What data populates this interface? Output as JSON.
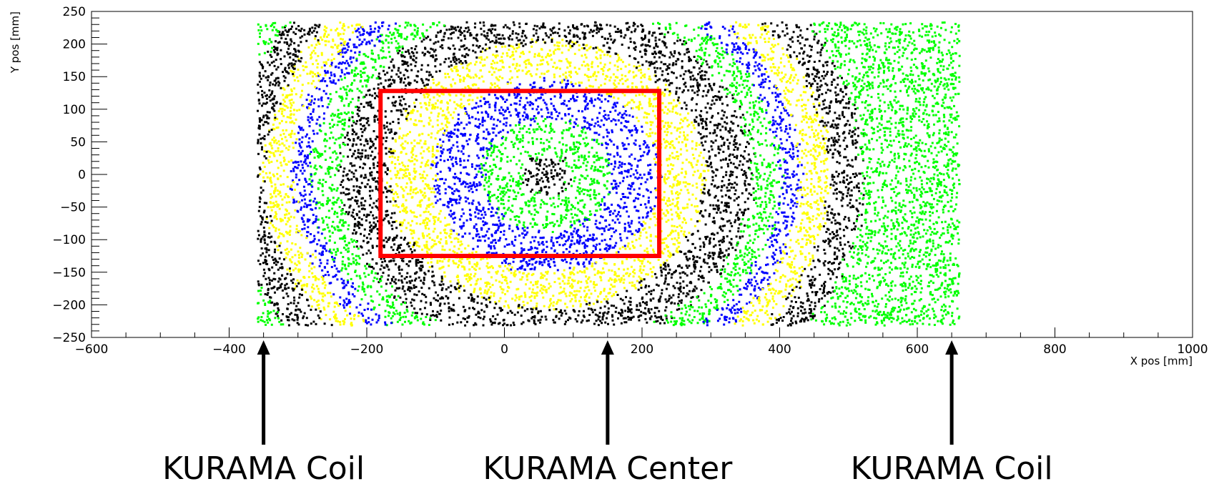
{
  "chart_data": {
    "type": "scatter",
    "title": "",
    "xlabel": "X pos [mm]",
    "ylabel": "Y pos [mm]",
    "xlim": [
      -600,
      1000
    ],
    "ylim": [
      -250,
      250
    ],
    "x_ticks": [
      -600,
      -400,
      -200,
      0,
      200,
      400,
      600,
      800,
      1000
    ],
    "y_ticks": [
      250,
      200,
      150,
      100,
      50,
      0,
      -50,
      -100,
      -150,
      -200,
      -250
    ],
    "x_tick_labels": [
      "−600",
      "−400",
      "−200",
      "0",
      "200",
      "400",
      "600",
      "800",
      "1000"
    ],
    "y_tick_labels": [
      "250",
      "200",
      "150",
      "100",
      "50",
      "0",
      "−50",
      "−100",
      "−150",
      "−200",
      "−250"
    ],
    "grid": false,
    "scatter_region": {
      "x_range": [
        -360,
        660
      ],
      "y_range": [
        -230,
        235
      ]
    },
    "ring_center": [
      60,
      0
    ],
    "color_bands": [
      {
        "color": "#000000",
        "r_max": 35
      },
      {
        "color": "#00ff00",
        "r_max": 95
      },
      {
        "color": "#0000ff",
        "r_max": 165
      },
      {
        "color": "#ffff00",
        "r_max": 230
      },
      {
        "color": "#000000",
        "r_max": 300
      },
      {
        "color": "#00ff00",
        "r_max": 340
      },
      {
        "color": "#0000ff",
        "r_max": 370
      },
      {
        "color": "#ffff00",
        "r_max": 410
      },
      {
        "color": "#000000",
        "r_max": 460
      },
      {
        "color": "#00ff00",
        "r_max": 9999
      }
    ],
    "highlight_rectangle": {
      "x": [
        -180,
        225
      ],
      "y": [
        -125,
        128
      ],
      "color": "#ff0000"
    },
    "annotations": [
      {
        "label": "KURAMA Coil",
        "x": -350
      },
      {
        "label": "KURAMA Center",
        "x": 150
      },
      {
        "label": "KURAMA Coil",
        "x": 650
      }
    ]
  }
}
